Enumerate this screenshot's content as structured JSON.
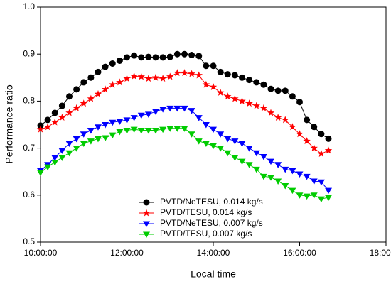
{
  "chart_data": {
    "type": "line",
    "xlabel": "Local time",
    "ylabel": "Performance ratio",
    "x": [
      600,
      610,
      620,
      630,
      640,
      650,
      660,
      670,
      680,
      690,
      700,
      710,
      720,
      730,
      740,
      750,
      760,
      770,
      780,
      790,
      800,
      810,
      820,
      830,
      840,
      850,
      860,
      870,
      880,
      890,
      900,
      910,
      920,
      930,
      940,
      950,
      960,
      970,
      980,
      990,
      1000
    ],
    "xlim": [
      600,
      1080
    ],
    "xticks": [
      {
        "value": 600,
        "label": "10:00:00"
      },
      {
        "value": 720,
        "label": "12:00:00"
      },
      {
        "value": 840,
        "label": "14:00:00"
      },
      {
        "value": 960,
        "label": "16:00:00"
      },
      {
        "value": 1080,
        "label": "18:00:00"
      }
    ],
    "ylim": [
      0.5,
      1.0
    ],
    "yticks": [
      0.5,
      0.6,
      0.7,
      0.8,
      0.9,
      {
        "value": 1.0,
        "label": "1.0"
      }
    ],
    "grid": false,
    "legend": "lower center",
    "series": [
      {
        "name": "PVTD/NeTESU, 0.014 kg/s",
        "color": "#000000",
        "marker": "circle",
        "values": [
          0.748,
          0.76,
          0.775,
          0.79,
          0.81,
          0.825,
          0.84,
          0.85,
          0.862,
          0.873,
          0.88,
          0.886,
          0.893,
          0.897,
          0.893,
          0.894,
          0.893,
          0.893,
          0.894,
          0.9,
          0.9,
          0.898,
          0.896,
          0.875,
          0.875,
          0.862,
          0.857,
          0.855,
          0.85,
          0.845,
          0.84,
          0.835,
          0.826,
          0.822,
          0.822,
          0.81,
          0.798,
          0.76,
          0.745,
          0.73,
          0.72
        ]
      },
      {
        "name": "PVTD/TESU, 0.014 kg/s",
        "color": "#ff0000",
        "marker": "star",
        "values": [
          0.74,
          0.745,
          0.755,
          0.765,
          0.775,
          0.785,
          0.795,
          0.805,
          0.815,
          0.825,
          0.835,
          0.84,
          0.848,
          0.853,
          0.852,
          0.848,
          0.85,
          0.848,
          0.852,
          0.86,
          0.86,
          0.858,
          0.855,
          0.835,
          0.83,
          0.818,
          0.81,
          0.805,
          0.8,
          0.795,
          0.79,
          0.785,
          0.775,
          0.765,
          0.76,
          0.745,
          0.73,
          0.715,
          0.7,
          0.688,
          0.695
        ]
      },
      {
        "name": "PVTD/NeTESU, 0.007 kg/s",
        "color": "#0000ff",
        "marker": "triangle-down",
        "values": [
          0.652,
          0.665,
          0.68,
          0.695,
          0.71,
          0.72,
          0.73,
          0.738,
          0.745,
          0.75,
          0.755,
          0.757,
          0.76,
          0.765,
          0.77,
          0.772,
          0.778,
          0.783,
          0.785,
          0.785,
          0.785,
          0.78,
          0.765,
          0.75,
          0.74,
          0.73,
          0.72,
          0.715,
          0.71,
          0.7,
          0.69,
          0.682,
          0.672,
          0.665,
          0.655,
          0.652,
          0.645,
          0.64,
          0.63,
          0.628,
          0.61
        ]
      },
      {
        "name": "PVTD/TESU, 0.007 kg/s",
        "color": "#00cc00",
        "marker": "triangle-down",
        "values": [
          0.648,
          0.66,
          0.67,
          0.68,
          0.69,
          0.7,
          0.71,
          0.715,
          0.72,
          0.722,
          0.728,
          0.735,
          0.738,
          0.74,
          0.738,
          0.738,
          0.738,
          0.74,
          0.742,
          0.742,
          0.742,
          0.73,
          0.715,
          0.71,
          0.705,
          0.7,
          0.69,
          0.68,
          0.672,
          0.665,
          0.655,
          0.64,
          0.638,
          0.63,
          0.62,
          0.61,
          0.6,
          0.598,
          0.6,
          0.592,
          0.595
        ]
      }
    ]
  }
}
